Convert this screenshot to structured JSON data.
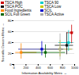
{
  "chart_data": {
    "type": "crosshair",
    "xlabel": "Information Availability Metric",
    "ylabel": "Scientific Concern Metric",
    "xlim": [
      0,
      1000
    ],
    "ylim": [
      0,
      80
    ],
    "xticks": [
      0,
      200,
      400,
      600,
      800,
      1000
    ],
    "yticks": [
      0,
      20,
      40,
      60,
      80
    ],
    "grid": true,
    "legend": "upper left",
    "series": [
      {
        "name": "TSCA High",
        "color": "#cc0000",
        "marker": "square",
        "x": 950,
        "y": 58,
        "x_lo": 870,
        "x_hi": 980,
        "y_lo": 38,
        "y_hi": 72
      },
      {
        "name": "TSCA 90",
        "color": "#00cccc",
        "marker": "square",
        "x": 900,
        "y": 40,
        "x_lo": 740,
        "x_hi": 980,
        "y_lo": 24,
        "y_hi": 62
      },
      {
        "name": "TSCA POC",
        "color": "#111111",
        "marker": "square",
        "x": 870,
        "y": 35,
        "x_lo": 680,
        "x_hi": 980,
        "y_lo": 18,
        "y_hi": 58
      },
      {
        "name": "TSCA Low",
        "color": "#cccc00",
        "marker": "square",
        "x": 760,
        "y": 28,
        "x_lo": 420,
        "x_hi": 960,
        "y_lo": 14,
        "y_hi": 44
      },
      {
        "name": "Food Ingredients",
        "color": "#ff8800",
        "marker": "square",
        "x": 120,
        "y": 22,
        "x_lo": 30,
        "x_hi": 380,
        "y_lo": 10,
        "y_hi": 38
      },
      {
        "name": "SCIL",
        "color": "#0000cc",
        "marker": "square",
        "x": 460,
        "y": 28,
        "x_lo": 80,
        "x_hi": 820,
        "y_lo": 16,
        "y_hi": 42
      },
      {
        "name": "SCIL Full Green",
        "color": "#006600",
        "marker": "square",
        "x": 520,
        "y": 22,
        "x_lo": 130,
        "x_hi": 850,
        "y_lo": 12,
        "y_hi": 36
      },
      {
        "name": "TSCA Active",
        "color": "#aaaaaa",
        "marker": "diamond",
        "x": 760,
        "y": 28,
        "x_lo": 80,
        "x_hi": 980,
        "y_lo": 8,
        "y_hi": 56
      }
    ]
  }
}
